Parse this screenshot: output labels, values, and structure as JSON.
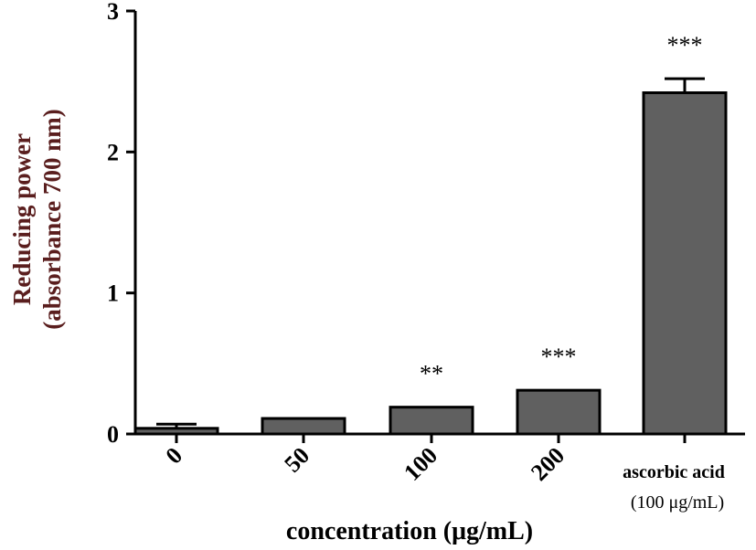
{
  "chart_data": {
    "type": "bar",
    "categories": [
      "0",
      "50",
      "100",
      "200",
      "ascorbic acid (100 μg/mL)"
    ],
    "category_lines": [
      [
        "0"
      ],
      [
        "50"
      ],
      [
        "100"
      ],
      [
        "200"
      ],
      [
        "ascorbic acid",
        "(100 μg/mL)"
      ]
    ],
    "values": [
      0.04,
      0.11,
      0.19,
      0.31,
      2.42
    ],
    "errors": [
      0.03,
      0.0,
      0.0,
      0.0,
      0.1
    ],
    "significance": [
      "",
      "",
      "**",
      "***",
      "***"
    ],
    "xlabel": "concentration (μg/mL)",
    "ylabel_lines": [
      "Reducing power",
      "(absorbance 700 nm)"
    ],
    "ylim": [
      0,
      3
    ],
    "yticks": [
      0,
      1,
      2,
      3
    ],
    "grid": false,
    "bar_color": "#606060",
    "ylabel_color": "#5a1e1e"
  }
}
